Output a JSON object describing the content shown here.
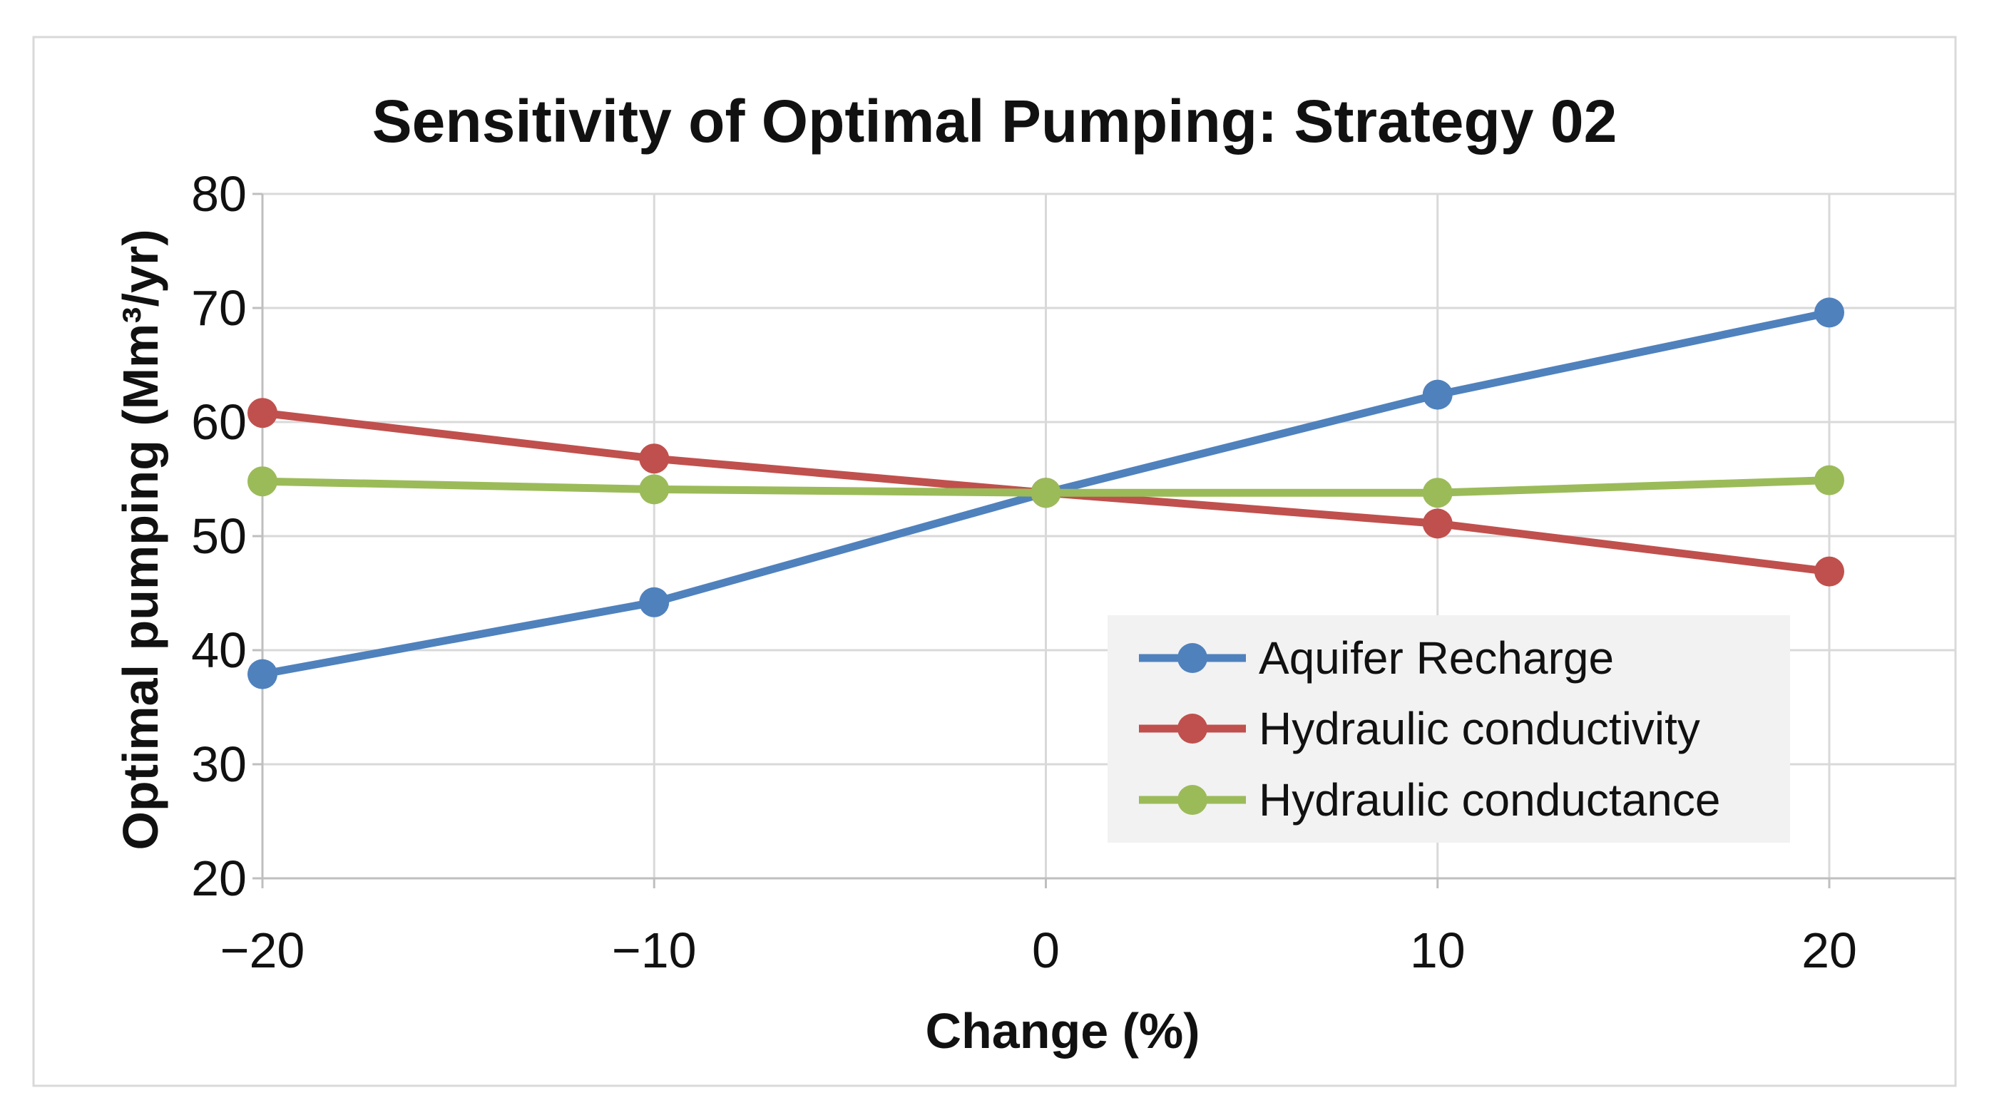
{
  "chart_data": {
    "type": "line",
    "title": "Sensitivity of Optimal Pumping: Strategy 02",
    "xlabel": "Change (%)",
    "ylabel": "Optimal pumping (Mm³/yr)",
    "x": [
      -20,
      -10,
      0,
      10,
      20
    ],
    "x_tick_labels": [
      "−20",
      "−10",
      "0",
      "10",
      "20"
    ],
    "y_ticks": [
      20,
      30,
      40,
      50,
      60,
      70,
      80
    ],
    "y_tick_labels": [
      "20",
      "30",
      "40",
      "50",
      "60",
      "70",
      "80"
    ],
    "ylim": [
      20,
      80
    ],
    "xlim": [
      -20,
      20
    ],
    "grid": true,
    "legend_position": "inside-lower-right",
    "series": [
      {
        "name": "Aquifer Recharge",
        "color": "#4F81BD",
        "values": [
          37.9,
          44.2,
          53.8,
          62.4,
          69.6
        ]
      },
      {
        "name": "Hydraulic conductivity",
        "color": "#C0504D",
        "values": [
          60.8,
          56.8,
          53.8,
          51.1,
          46.9
        ]
      },
      {
        "name": "Hydraulic conductance",
        "color": "#9BBB59",
        "values": [
          54.8,
          54.1,
          53.8,
          53.8,
          54.9
        ]
      }
    ]
  },
  "appearance": {
    "background": "#FFFFFF",
    "border_color": "#D9D9D9",
    "gridline_color": "#D9D9D9",
    "axis_line_color": "#BFBFBF",
    "legend_bg": "#F2F2F2",
    "text_color": "#111111"
  }
}
